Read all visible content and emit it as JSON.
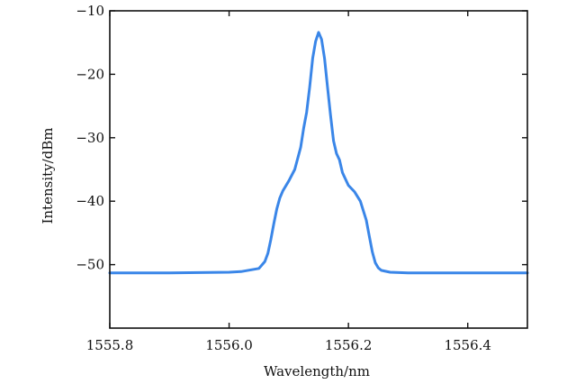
{
  "chart_data": {
    "type": "line",
    "title": "",
    "xlabel": "Wavelength/nm",
    "ylabel": "Intensity/dBm",
    "xlim": [
      1555.8,
      1556.5
    ],
    "ylim": [
      -60,
      -10
    ],
    "xticks": [
      1555.8,
      1556.0,
      1556.2,
      1556.4
    ],
    "xtick_labels": [
      "1555.8",
      "1556.0",
      "1556.2",
      "1556.4"
    ],
    "yticks": [
      -10,
      -20,
      -30,
      -40,
      -50
    ],
    "ytick_labels": [
      "−10",
      "−20",
      "−30",
      "−40",
      "−50"
    ],
    "grid": false,
    "series": [
      {
        "color": "#3a86e8",
        "x": [
          1555.8,
          1555.9,
          1556.0,
          1556.02,
          1556.05,
          1556.06,
          1556.065,
          1556.07,
          1556.075,
          1556.08,
          1556.085,
          1556.09,
          1556.1,
          1556.11,
          1556.12,
          1556.125,
          1556.13,
          1556.135,
          1556.14,
          1556.145,
          1556.15,
          1556.155,
          1556.16,
          1556.165,
          1556.17,
          1556.175,
          1556.18,
          1556.185,
          1556.19,
          1556.2,
          1556.21,
          1556.22,
          1556.23,
          1556.235,
          1556.24,
          1556.245,
          1556.25,
          1556.255,
          1556.26,
          1556.27,
          1556.3,
          1556.4,
          1556.5
        ],
        "y": [
          -51.3,
          -51.3,
          -51.2,
          -51.1,
          -50.6,
          -49.5,
          -48.2,
          -46.0,
          -43.5,
          -41.2,
          -39.5,
          -38.4,
          -36.8,
          -35.0,
          -31.5,
          -28.5,
          -26.0,
          -22.0,
          -17.5,
          -14.8,
          -13.4,
          -14.5,
          -17.5,
          -22.0,
          -26.5,
          -30.5,
          -32.5,
          -33.5,
          -35.5,
          -37.5,
          -38.5,
          -40.0,
          -43.0,
          -45.5,
          -48.0,
          -49.7,
          -50.5,
          -50.9,
          -51.0,
          -51.2,
          -51.3,
          -51.3,
          -51.3
        ]
      }
    ]
  }
}
